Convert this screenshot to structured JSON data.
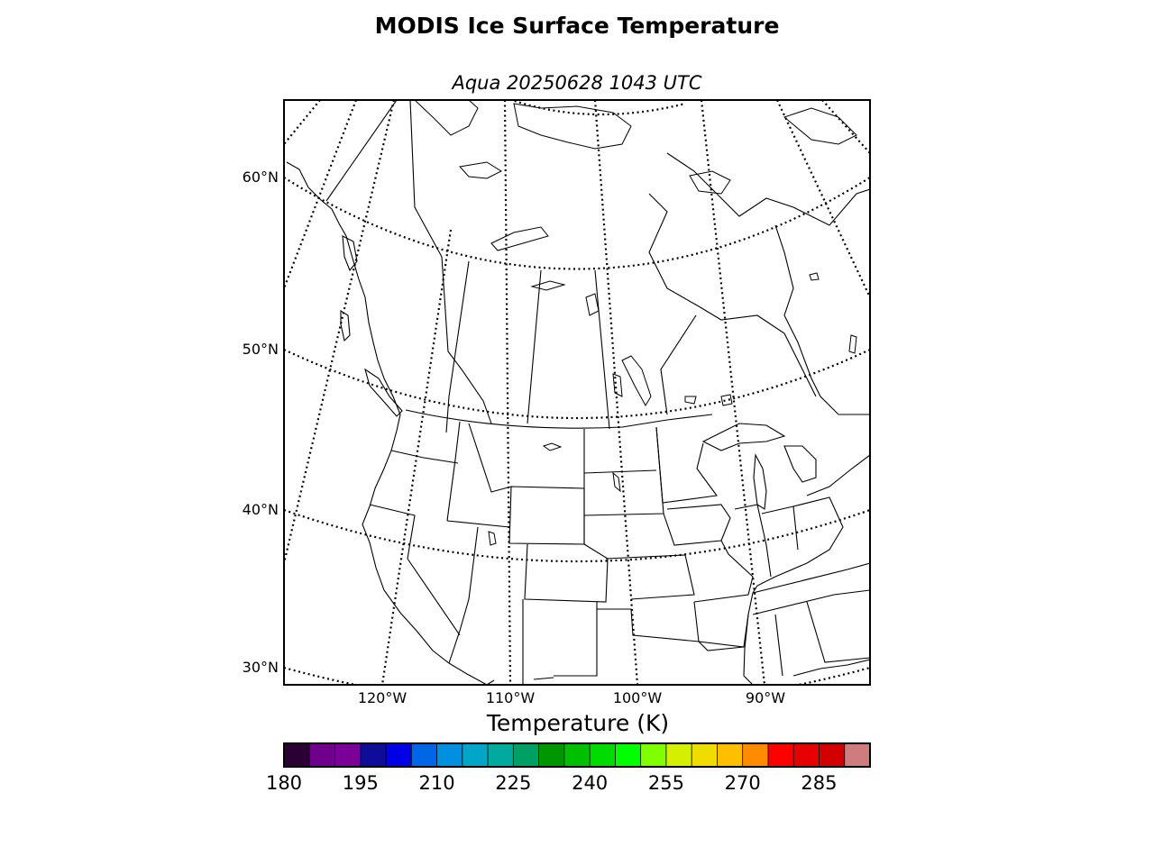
{
  "title": "MODIS Ice Surface Temperature",
  "subtitle": "Aqua 20250628 1043 UTC",
  "map": {
    "projection": "lambert-conformal",
    "graticule_style": "dotted",
    "lat_labels": [
      "60°N",
      "50°N",
      "40°N",
      "30°N"
    ],
    "lon_labels": [
      "120°W",
      "110°W",
      "100°W",
      "90°W"
    ],
    "data_colored_pixels": "none visible"
  },
  "colorbar": {
    "title": "Temperature (K)",
    "min": 180,
    "max": 294,
    "step": 5,
    "tick_labels": [
      "180",
      "195",
      "210",
      "225",
      "240",
      "255",
      "270",
      "285"
    ],
    "colors": [
      "#2b0033",
      "#70008c",
      "#7a0099",
      "#0d0d99",
      "#0000e6",
      "#0066e6",
      "#0090e0",
      "#00a5c8",
      "#00aa9c",
      "#00a064",
      "#009600",
      "#00be00",
      "#00dc00",
      "#00ff00",
      "#80ff00",
      "#d2f000",
      "#f0dc00",
      "#ffbe00",
      "#ff8c00",
      "#ff0000",
      "#e60000",
      "#d20000",
      "#cd7d7d"
    ]
  },
  "colors": {
    "background": "#ffffff",
    "lines": "#000000"
  }
}
